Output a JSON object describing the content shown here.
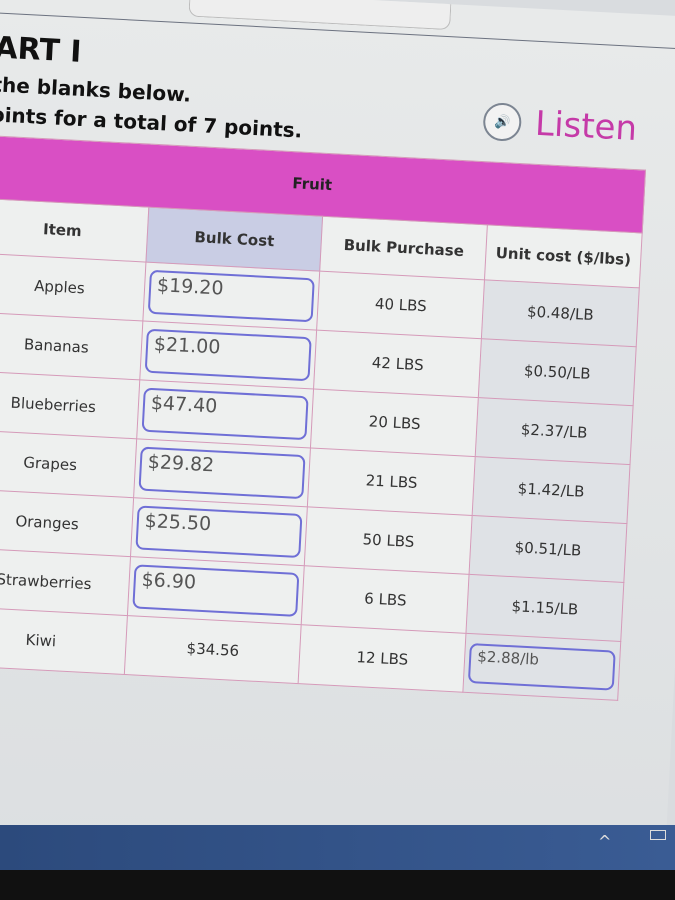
{
  "header": {
    "title": "ART I",
    "instruction_1": "the blanks below.",
    "instruction_2": "oints for a total of 7 points.",
    "listen_label": "Listen"
  },
  "table": {
    "group_header": "Fruit",
    "columns": [
      "Item",
      "Bulk Cost",
      "Bulk Purchase",
      "Unit cost ($/lbs)"
    ],
    "rows": [
      {
        "item": "Apples",
        "bulk_cost": "$19.20",
        "bulk_purchase": "40 LBS",
        "unit_cost": "$0.48/LB",
        "input": "bulk_cost"
      },
      {
        "item": "Bananas",
        "bulk_cost": "$21.00",
        "bulk_purchase": "42 LBS",
        "unit_cost": "$0.50/LB",
        "input": "bulk_cost"
      },
      {
        "item": "Blueberries",
        "bulk_cost": "$47.40",
        "bulk_purchase": "20 LBS",
        "unit_cost": "$2.37/LB",
        "input": "bulk_cost"
      },
      {
        "item": "Grapes",
        "bulk_cost": "$29.82",
        "bulk_purchase": "21 LBS",
        "unit_cost": "$1.42/LB",
        "input": "bulk_cost"
      },
      {
        "item": "Oranges",
        "bulk_cost": "$25.50",
        "bulk_purchase": "50 LBS",
        "unit_cost": "$0.51/LB",
        "input": "bulk_cost"
      },
      {
        "item": "Strawberries",
        "bulk_cost": "$6.90",
        "bulk_purchase": "6 LBS",
        "unit_cost": "$1.15/LB",
        "input": "bulk_cost"
      },
      {
        "item": "Kiwi",
        "bulk_cost": "$34.56",
        "bulk_purchase": "12 LBS",
        "unit_cost": "$2.88/lb",
        "input": "unit_cost"
      }
    ]
  },
  "colors": {
    "accent": "#d94fc4",
    "listen": "#c53aa8",
    "input_border": "#6f6fd6"
  },
  "icons": {
    "listen": "speaker-icon",
    "tray": "chevron-up-icon",
    "battery": "battery-icon"
  }
}
